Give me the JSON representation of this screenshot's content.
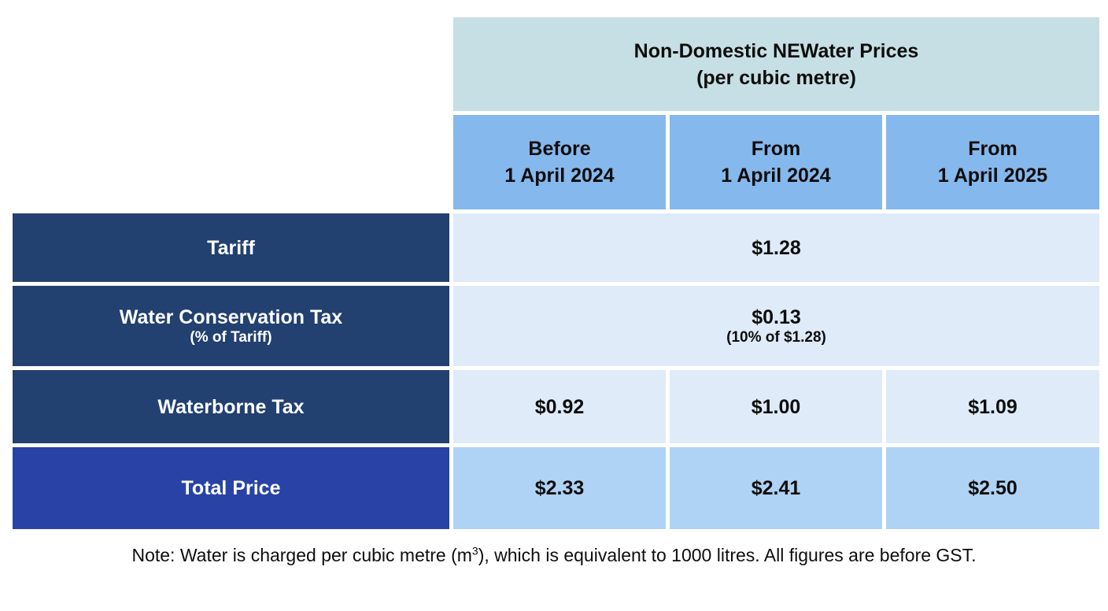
{
  "table": {
    "title": {
      "line1": "Non-Domestic NEWater Prices",
      "line2": "(per cubic metre)"
    },
    "columns": [
      {
        "line1": "Before",
        "line2": "1 April 2024"
      },
      {
        "line1": "From",
        "line2": "1 April 2024"
      },
      {
        "line1": "From",
        "line2": "1 April 2025"
      }
    ],
    "rows": {
      "tariff": {
        "label": "Tariff",
        "value": "$1.28"
      },
      "wct": {
        "label": "Water Conservation Tax",
        "sublabel": "(% of Tariff)",
        "value": "$0.13",
        "subvalue": "(10% of $1.28)"
      },
      "waterborne": {
        "label": "Waterborne Tax",
        "values": [
          "$0.92",
          "$1.00",
          "$1.09"
        ]
      },
      "total": {
        "label": "Total Price",
        "values": [
          "$2.33",
          "$2.41",
          "$2.50"
        ]
      }
    }
  },
  "note": {
    "prefix": "Note: Water is charged per cubic metre (m",
    "superscript": "3",
    "suffix": "), which is equivalent to 1000 litres. All figures are before GST."
  },
  "colors": {
    "teal_header_bg": "#c6dfe4",
    "column_header_bg": "#85b8ec",
    "row_label_bg": "#224070",
    "total_label_bg": "#2843a5",
    "data_cell_bg": "#dfebf8",
    "total_cell_bg": "#aed3f4",
    "text_dark": "#0d0d0d",
    "text_light": "#ffffff"
  },
  "chart_data": {
    "type": "table",
    "title": "Non-Domestic NEWater Prices (per cubic metre)",
    "columns": [
      "Before 1 April 2024",
      "From 1 April 2024",
      "From 1 April 2025"
    ],
    "rows": [
      {
        "label": "Tariff",
        "merged_across_columns": true,
        "values": [
          "$1.28",
          "$1.28",
          "$1.28"
        ]
      },
      {
        "label": "Water Conservation Tax (% of Tariff)",
        "merged_across_columns": true,
        "values": [
          "$0.13 (10% of $1.28)",
          "$0.13 (10% of $1.28)",
          "$0.13 (10% of $1.28)"
        ]
      },
      {
        "label": "Waterborne Tax",
        "merged_across_columns": false,
        "values": [
          "$0.92",
          "$1.00",
          "$1.09"
        ]
      },
      {
        "label": "Total Price",
        "merged_across_columns": false,
        "values": [
          "$2.33",
          "$2.41",
          "$2.50"
        ]
      }
    ],
    "note": "Note: Water is charged per cubic metre (m³), which is equivalent to 1000 litres. All figures are before GST."
  }
}
